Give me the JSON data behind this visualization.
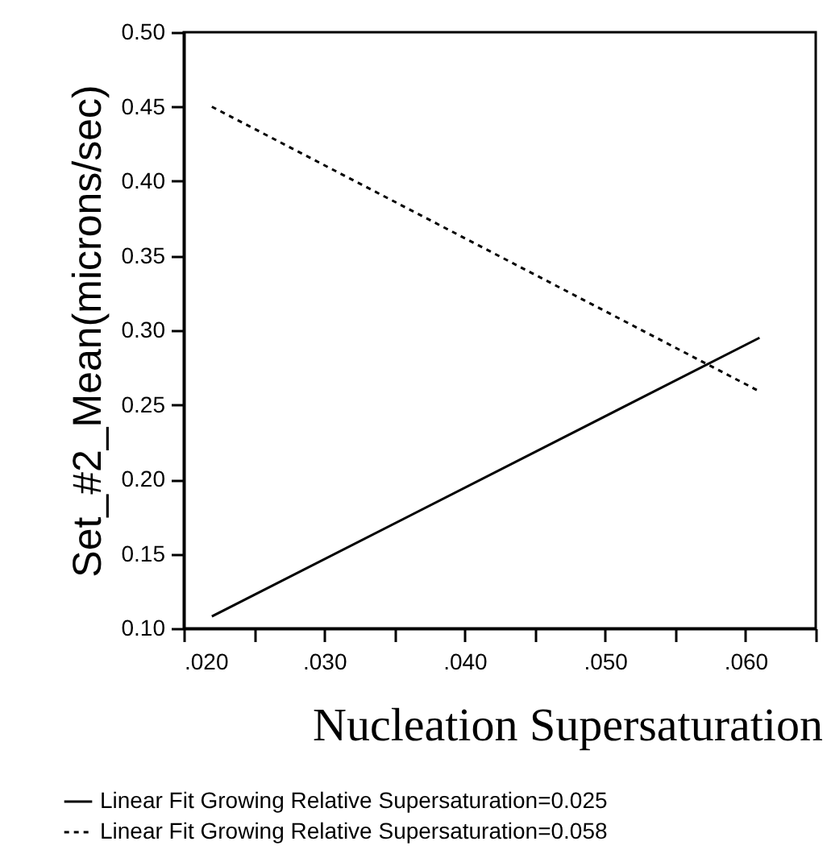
{
  "chart_data": {
    "type": "line",
    "xlabel": "Nucleation Supersaturation",
    "ylabel": "Set_#2_Mean(microns/sec)",
    "x": [
      0.022,
      0.061
    ],
    "series": [
      {
        "name": "Linear Fit Growing Relative Supersaturation=0.025",
        "color": "#000000",
        "line_style": "solid",
        "values": [
          0.108,
          0.295
        ]
      },
      {
        "name": "Linear Fit Growing Relative Supersaturation=0.058",
        "color": "#000000",
        "line_style": "dashed",
        "values": [
          0.45,
          0.259
        ]
      }
    ],
    "xlim": [
      0.02,
      0.065
    ],
    "xticks": [
      {
        "value": 0.02,
        "label": ".020"
      },
      {
        "value": 0.025,
        "label": null
      },
      {
        "value": 0.03,
        "label": ".030"
      },
      {
        "value": 0.035,
        "label": null
      },
      {
        "value": 0.04,
        "label": ".040"
      },
      {
        "value": 0.045,
        "label": null
      },
      {
        "value": 0.05,
        "label": ".050"
      },
      {
        "value": 0.055,
        "label": null
      },
      {
        "value": 0.06,
        "label": ".060"
      },
      {
        "value": 0.065,
        "label": null
      }
    ],
    "ylim": [
      0.1,
      0.5
    ],
    "yticks": [
      {
        "value": 0.1,
        "label": "0.10"
      },
      {
        "value": 0.15,
        "label": "0.15"
      },
      {
        "value": 0.2,
        "label": "0.20"
      },
      {
        "value": 0.25,
        "label": "0.25"
      },
      {
        "value": 0.3,
        "label": "0.30"
      },
      {
        "value": 0.35,
        "label": "0.35"
      },
      {
        "value": 0.4,
        "label": "0.40"
      },
      {
        "value": 0.45,
        "label": "0.45"
      },
      {
        "value": 0.5,
        "label": "0.50"
      }
    ],
    "grid": false,
    "legend": "bottom",
    "marker": "none"
  }
}
